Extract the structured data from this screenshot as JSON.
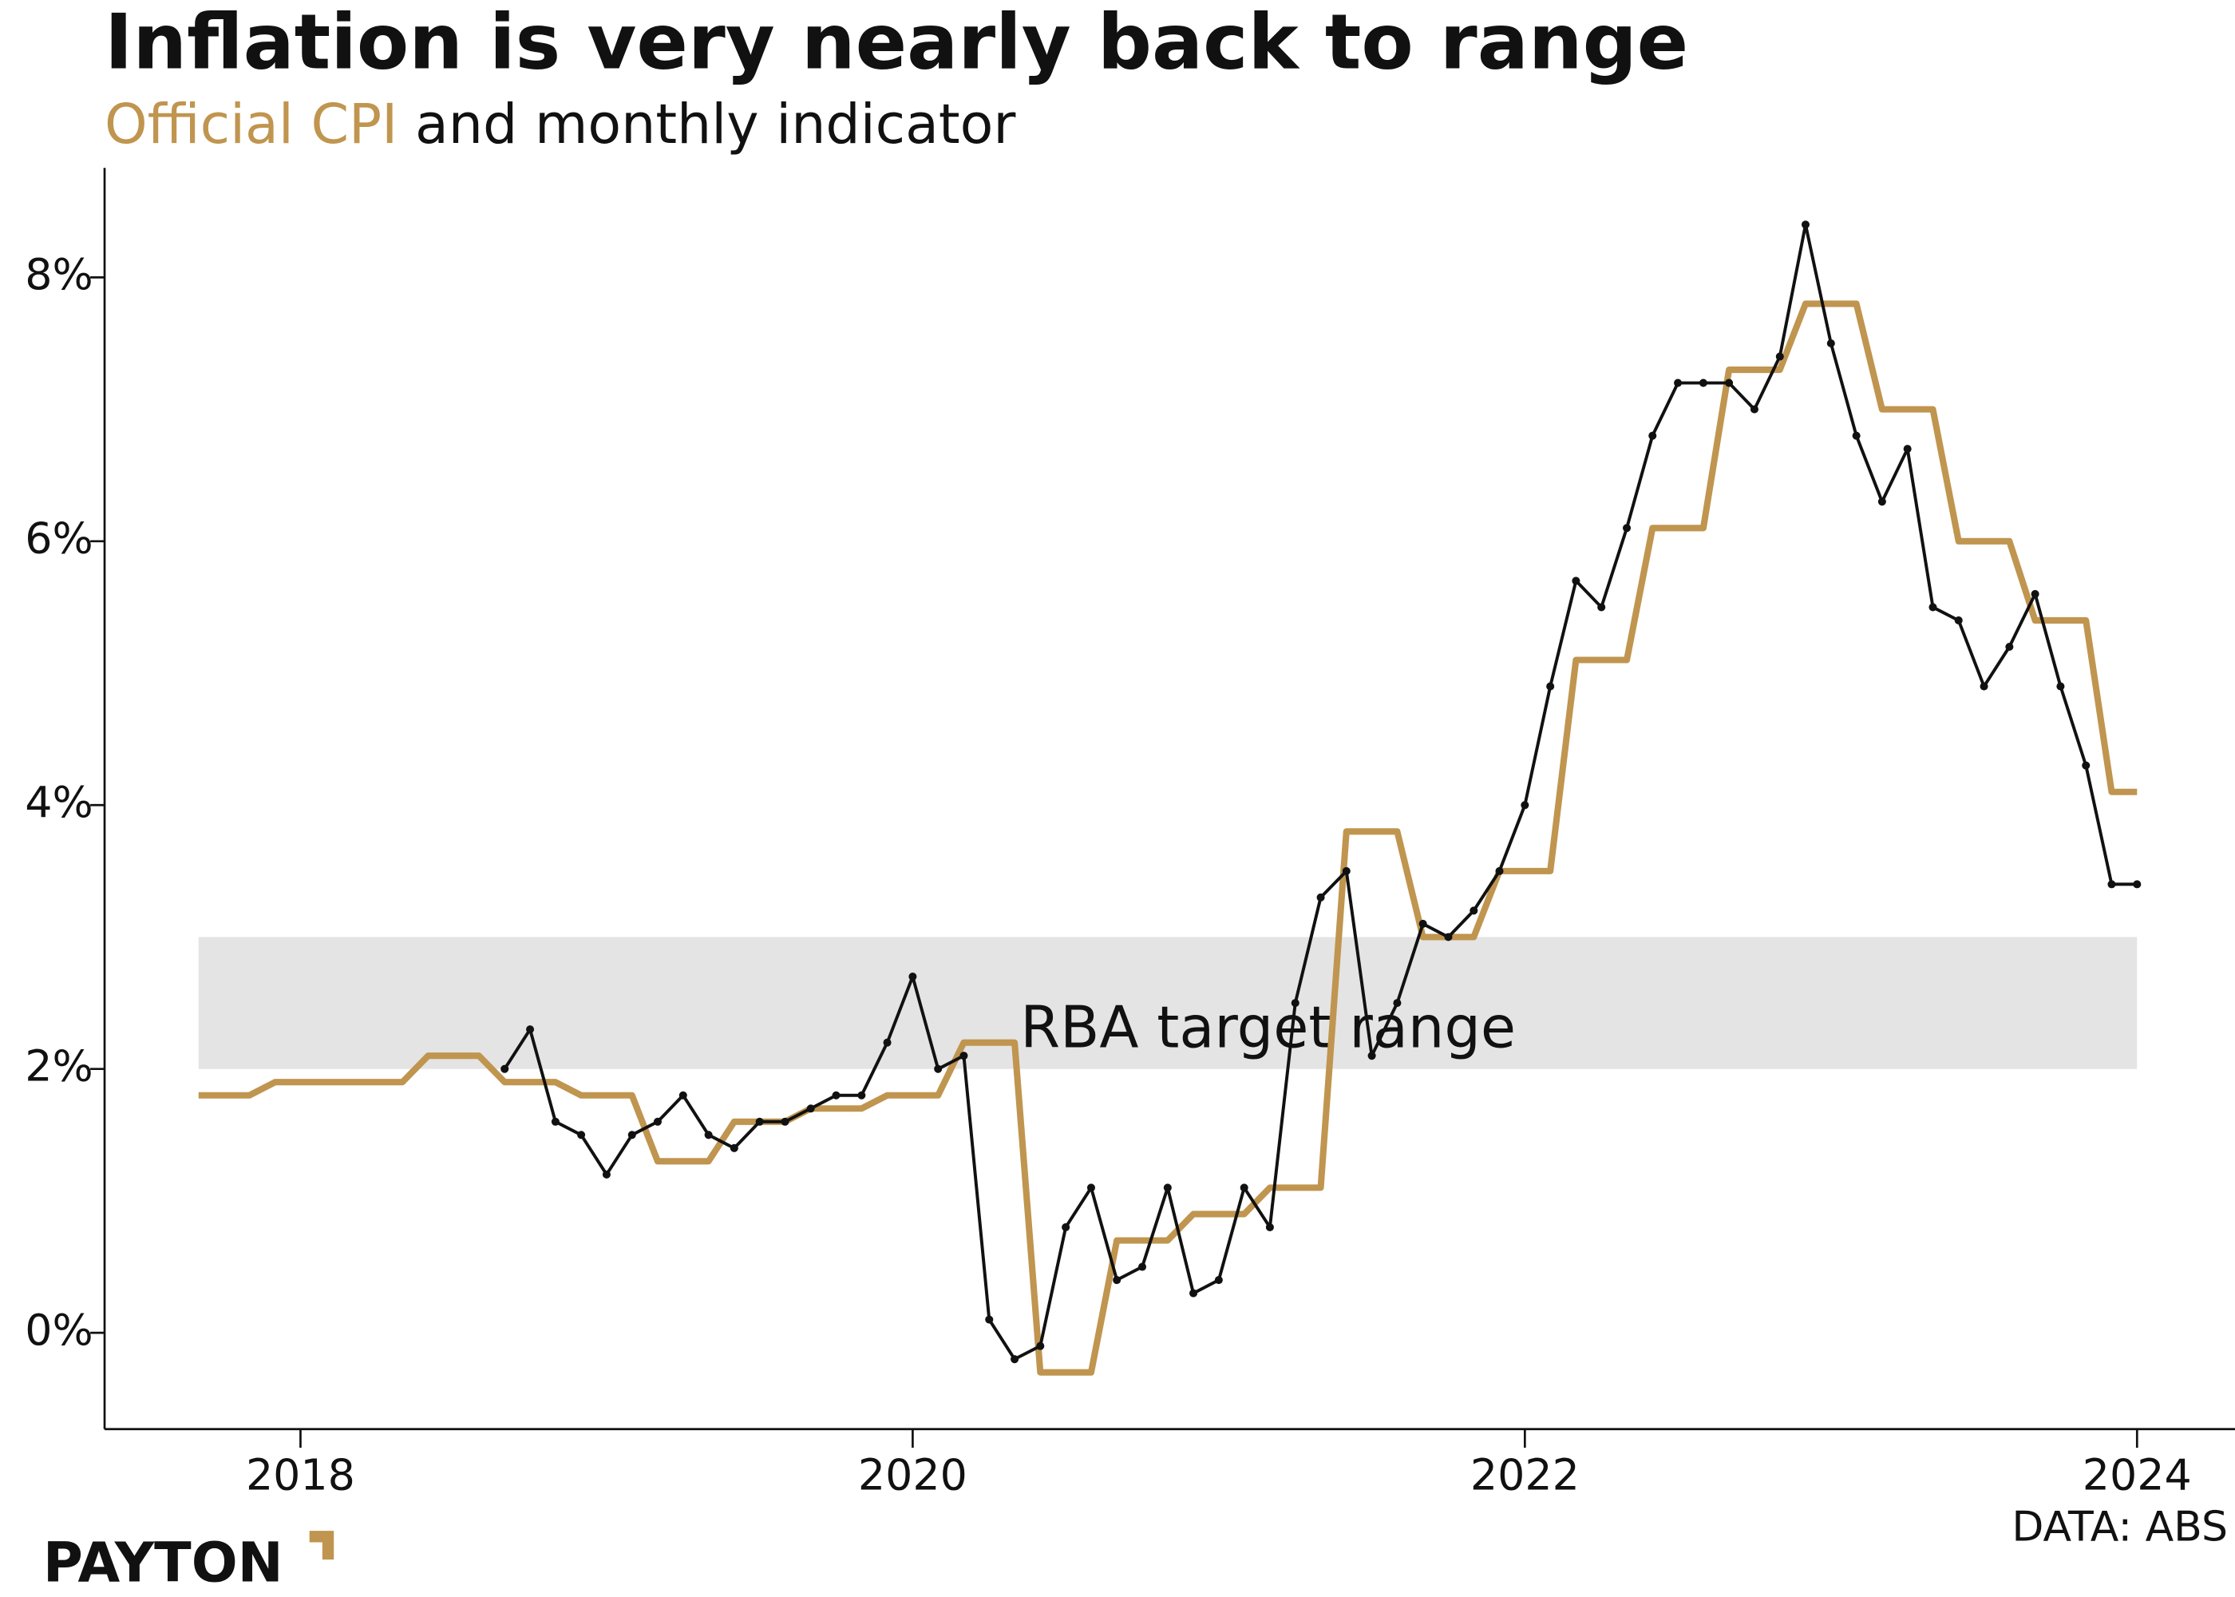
{
  "chart_data": {
    "type": "line",
    "title": "Inflation is very nearly back to range",
    "subtitle_joiner": "and",
    "source": "DATA: ABS",
    "brand": "PAYTON",
    "x": [
      2017.667,
      2017.75,
      2017.833,
      2017.917,
      2018,
      2018.083,
      2018.167,
      2018.25,
      2018.333,
      2018.417,
      2018.5,
      2018.583,
      2018.667,
      2018.75,
      2018.833,
      2018.917,
      2019,
      2019.083,
      2019.167,
      2019.25,
      2019.333,
      2019.417,
      2019.5,
      2019.583,
      2019.667,
      2019.75,
      2019.833,
      2019.917,
      2020,
      2020.083,
      2020.167,
      2020.25,
      2020.333,
      2020.417,
      2020.5,
      2020.583,
      2020.667,
      2020.75,
      2020.833,
      2020.917,
      2021,
      2021.083,
      2021.167,
      2021.25,
      2021.333,
      2021.417,
      2021.5,
      2021.583,
      2021.667,
      2021.75,
      2021.833,
      2021.917,
      2022,
      2022.083,
      2022.167,
      2022.25,
      2022.333,
      2022.417,
      2022.5,
      2022.583,
      2022.667,
      2022.75,
      2022.833,
      2022.917,
      2023,
      2023.083,
      2023.167,
      2023.25,
      2023.333,
      2023.417,
      2023.5,
      2023.583,
      2023.667,
      2023.75,
      2023.833,
      2023.917,
      2024
    ],
    "series": [
      {
        "name": "Official CPI",
        "color": "#c0954f",
        "width": 4.5,
        "markers": false,
        "values": [
          1.8,
          1.8,
          1.8,
          1.9,
          1.9,
          1.9,
          1.9,
          1.9,
          1.9,
          2.1,
          2.1,
          2.1,
          1.9,
          1.9,
          1.9,
          1.8,
          1.8,
          1.8,
          1.3,
          1.3,
          1.3,
          1.6,
          1.6,
          1.6,
          1.7,
          1.7,
          1.7,
          1.8,
          1.8,
          1.8,
          2.2,
          2.2,
          2.2,
          -0.3,
          -0.3,
          -0.3,
          0.7,
          0.7,
          0.7,
          0.9,
          0.9,
          0.9,
          1.1,
          1.1,
          1.1,
          3.8,
          3.8,
          3.8,
          3.0,
          3.0,
          3.0,
          3.5,
          3.5,
          3.5,
          5.1,
          5.1,
          5.1,
          6.1,
          6.1,
          6.1,
          7.3,
          7.3,
          7.3,
          7.8,
          7.8,
          7.8,
          7.0,
          7.0,
          7.0,
          6.0,
          6.0,
          6.0,
          5.4,
          5.4,
          5.4,
          4.1,
          4.1
        ]
      },
      {
        "name": "monthly indicator",
        "color": "#111111",
        "width": 2.2,
        "markers": true,
        "values": [
          null,
          null,
          null,
          null,
          null,
          null,
          null,
          null,
          null,
          null,
          null,
          null,
          2.0,
          2.3,
          1.6,
          1.5,
          1.2,
          1.5,
          1.6,
          1.8,
          1.5,
          1.4,
          1.6,
          1.6,
          1.7,
          1.8,
          1.8,
          2.2,
          2.7,
          2.0,
          2.1,
          0.1,
          -0.2,
          -0.1,
          0.8,
          1.1,
          0.4,
          0.5,
          1.1,
          0.3,
          0.4,
          1.1,
          0.8,
          2.5,
          3.3,
          3.5,
          2.1,
          2.5,
          3.1,
          3.0,
          3.2,
          3.5,
          4.0,
          4.9,
          5.7,
          5.5,
          6.1,
          6.8,
          7.2,
          7.2,
          7.2,
          7.0,
          7.4,
          8.4,
          7.5,
          6.8,
          6.3,
          6.7,
          5.5,
          5.4,
          4.9,
          5.2,
          5.6,
          4.9,
          4.3,
          3.4,
          3.4
        ]
      }
    ],
    "band": {
      "label": "RBA target range",
      "range": [
        2,
        3
      ],
      "color": "#e4e4e4"
    },
    "xlim": [
      2017.36,
      2024.32
    ],
    "xticks": [
      2018,
      2020,
      2022,
      2024
    ],
    "ylim": [
      -0.73,
      8.83
    ],
    "yticks": [
      {
        "value": 0,
        "label": "0%"
      },
      {
        "value": 2,
        "label": "2%"
      },
      {
        "value": 4,
        "label": "4%"
      },
      {
        "value": 6,
        "label": "6%"
      },
      {
        "value": 8,
        "label": "8%"
      }
    ],
    "grid": false
  }
}
